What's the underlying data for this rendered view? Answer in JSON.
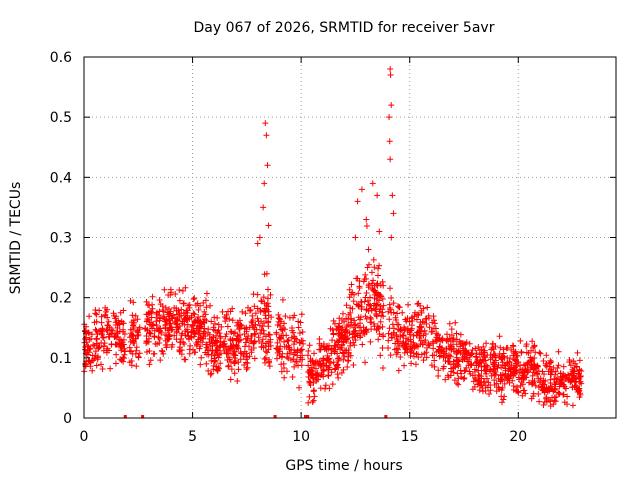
{
  "chart_data": {
    "type": "scatter",
    "title": "Day 067 of 2026, SRMTID for receiver 5avr",
    "xlabel": "GPS time / hours",
    "ylabel": "SRMTID / TECUs",
    "xlim": [
      0,
      24.5
    ],
    "ylim": [
      0,
      0.6
    ],
    "xticks": [
      0,
      5,
      10,
      15,
      20
    ],
    "xtick_labels": [
      "0",
      "5",
      "10",
      "15",
      "20"
    ],
    "yticks": [
      0,
      0.1,
      0.2,
      0.3,
      0.4,
      0.5,
      0.6
    ],
    "ytick_labels": [
      "0",
      "0.1",
      "0.2",
      "0.3",
      "0.4",
      "0.5",
      "0.6"
    ],
    "grid": true,
    "marker": "+",
    "series": [
      {
        "name": "SRMTID",
        "color": "#ff0000",
        "trend": {
          "x": [
            0,
            0.5,
            1,
            1.5,
            2,
            2.5,
            3,
            3.5,
            4,
            4.5,
            5,
            5.5,
            6,
            6.5,
            7,
            7.5,
            8,
            8.5,
            9,
            9.5,
            10,
            10.5,
            11,
            11.5,
            12,
            12.5,
            13,
            13.5,
            14,
            14.5,
            15,
            15.5,
            16,
            16.5,
            17,
            17.5,
            18,
            18.5,
            19,
            19.5,
            20,
            20.5,
            21,
            21.5,
            22,
            22.5,
            22.9
          ],
          "y": [
            0.12,
            0.13,
            0.14,
            0.14,
            0.13,
            0.14,
            0.15,
            0.15,
            0.16,
            0.16,
            0.15,
            0.14,
            0.13,
            0.13,
            0.12,
            0.13,
            0.15,
            0.16,
            0.13,
            0.12,
            0.11,
            0.07,
            0.09,
            0.11,
            0.13,
            0.16,
            0.2,
            0.2,
            0.16,
            0.13,
            0.13,
            0.14,
            0.13,
            0.11,
            0.1,
            0.1,
            0.09,
            0.08,
            0.08,
            0.08,
            0.08,
            0.08,
            0.07,
            0.06,
            0.06,
            0.07,
            0.06
          ],
          "spread": [
            0.05,
            0.05,
            0.05,
            0.05,
            0.05,
            0.05,
            0.05,
            0.05,
            0.05,
            0.05,
            0.05,
            0.05,
            0.05,
            0.05,
            0.05,
            0.05,
            0.06,
            0.07,
            0.05,
            0.05,
            0.05,
            0.04,
            0.04,
            0.05,
            0.05,
            0.06,
            0.08,
            0.07,
            0.06,
            0.05,
            0.05,
            0.05,
            0.05,
            0.04,
            0.04,
            0.04,
            0.04,
            0.04,
            0.04,
            0.04,
            0.04,
            0.04,
            0.04,
            0.04,
            0.04,
            0.04,
            0.03
          ]
        },
        "peaks": [
          {
            "x": 8.35,
            "y": 0.49
          },
          {
            "x": 8.4,
            "y": 0.47
          },
          {
            "x": 8.45,
            "y": 0.42
          },
          {
            "x": 8.3,
            "y": 0.39
          },
          {
            "x": 8.25,
            "y": 0.35
          },
          {
            "x": 8.5,
            "y": 0.32
          },
          {
            "x": 8.1,
            "y": 0.3
          },
          {
            "x": 8.0,
            "y": 0.29
          },
          {
            "x": 12.6,
            "y": 0.36
          },
          {
            "x": 12.8,
            "y": 0.38
          },
          {
            "x": 13.0,
            "y": 0.33
          },
          {
            "x": 13.3,
            "y": 0.39
          },
          {
            "x": 13.5,
            "y": 0.37
          },
          {
            "x": 12.5,
            "y": 0.3
          },
          {
            "x": 13.1,
            "y": 0.28
          },
          {
            "x": 13.6,
            "y": 0.31
          },
          {
            "x": 14.1,
            "y": 0.58
          },
          {
            "x": 14.12,
            "y": 0.57
          },
          {
            "x": 14.15,
            "y": 0.52
          },
          {
            "x": 14.05,
            "y": 0.5
          },
          {
            "x": 14.08,
            "y": 0.46
          },
          {
            "x": 14.1,
            "y": 0.43
          },
          {
            "x": 14.2,
            "y": 0.37
          },
          {
            "x": 14.25,
            "y": 0.34
          },
          {
            "x": 14.15,
            "y": 0.3
          }
        ],
        "gaps": [
          {
            "from": 1.9,
            "to": 2.1
          },
          {
            "from": 2.6,
            "to": 2.8
          },
          {
            "from": 8.65,
            "to": 8.85
          },
          {
            "from": 10.1,
            "to": 10.3
          },
          {
            "from": 13.8,
            "to": 14.0
          }
        ],
        "baseline_markers": [
          1.9,
          2.7,
          8.8,
          10.2,
          10.3,
          13.9
        ]
      }
    ]
  }
}
